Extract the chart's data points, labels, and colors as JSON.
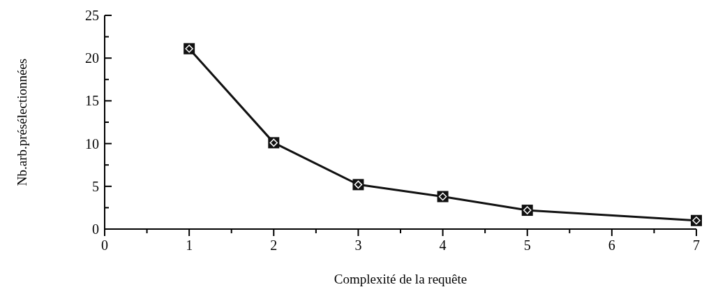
{
  "chart_data": {
    "type": "line",
    "xlabel": "Complexité de la requête",
    "ylabel": "Nb.arb.présélectionnées",
    "x": [
      1,
      2,
      3,
      4,
      5,
      7
    ],
    "series": [
      {
        "color": "#111111",
        "values": [
          21.1,
          10.1,
          5.2,
          3.8,
          2.2,
          1.0
        ]
      }
    ],
    "xlim": [
      0,
      7
    ],
    "ylim": [
      0,
      25
    ],
    "xticks": [
      0,
      {
        "value": 0.5,
        "label": null
      },
      1,
      {
        "value": 1.5,
        "label": null
      },
      2,
      {
        "value": 2.5,
        "label": null
      },
      3,
      {
        "value": 3.5,
        "label": null
      },
      4,
      {
        "value": 4.5,
        "label": null
      },
      5,
      {
        "value": 5.5,
        "label": null
      },
      6,
      {
        "value": 6.5,
        "label": null
      },
      7
    ],
    "yticks": [
      0,
      {
        "value": 2.5,
        "label": null
      },
      5,
      {
        "value": 7.5,
        "label": null
      },
      10,
      {
        "value": 12.5,
        "label": null
      },
      15,
      {
        "value": 17.5,
        "label": null
      },
      20,
      {
        "value": 22.5,
        "label": null
      },
      25
    ],
    "grid": false,
    "marker": "square",
    "line_style": "solid"
  }
}
